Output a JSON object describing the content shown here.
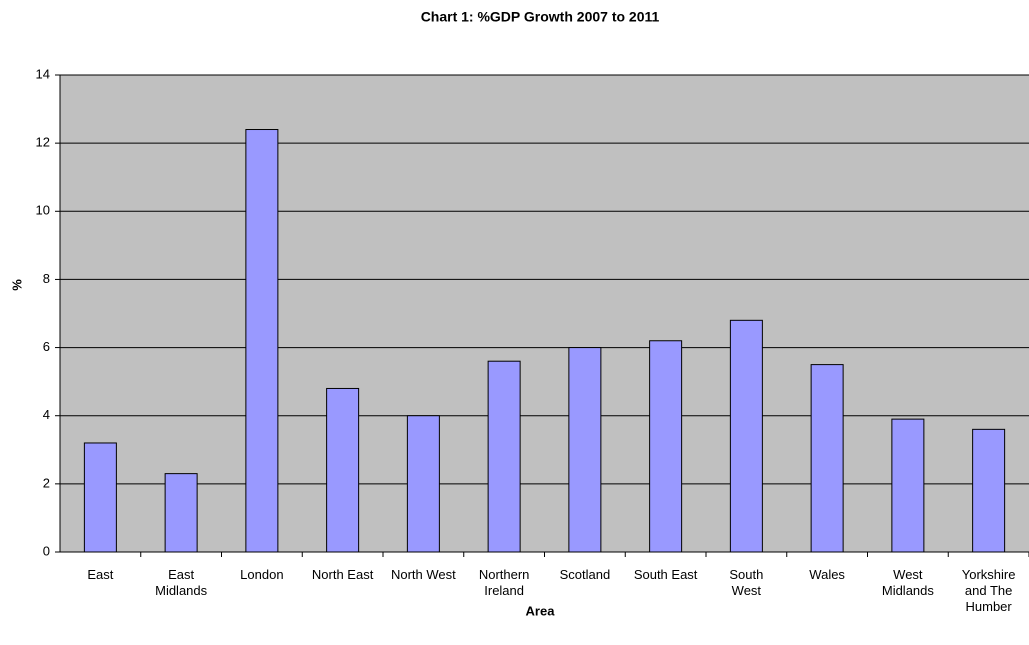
{
  "chart_data": {
    "type": "bar",
    "title": "Chart 1: %GDP Growth 2007 to 2011",
    "x_label": "Area",
    "y_label": "%",
    "categories": [
      "East",
      "East\nMidlands",
      "London",
      "North East",
      "North West",
      "Northern\nIreland",
      "Scotland",
      "South East",
      "South\nWest",
      "Wales",
      "West\nMidlands",
      "Yorkshire\nand The\nHumber"
    ],
    "values": [
      3.2,
      2.3,
      12.4,
      4.8,
      4.0,
      5.6,
      6.0,
      6.2,
      6.8,
      5.5,
      3.9,
      3.6
    ],
    "color": "#9999ff",
    "ylim": [
      0,
      14
    ],
    "yticks": [
      0,
      2,
      4,
      6,
      8,
      10,
      12,
      14
    ],
    "grid": true
  }
}
